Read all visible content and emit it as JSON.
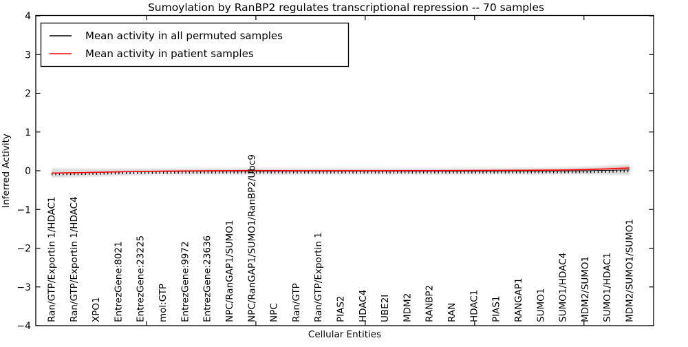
{
  "chart_data": {
    "type": "line",
    "title": "Sumoylation by RanBP2 regulates transcriptional repression -- 70 samples",
    "xlabel": "Cellular Entities",
    "ylabel": "Inferred Activity",
    "ylim": [
      -4,
      4
    ],
    "grid": false,
    "legend_position": "upper left",
    "ytick_values": [
      4,
      3,
      2,
      1,
      0,
      -1,
      -2,
      -3,
      -4
    ],
    "ytick_labels": [
      "4",
      "3",
      "2",
      "1",
      "0",
      "−1",
      "−2",
      "−3",
      "−4"
    ],
    "xticks_unlabeled_index": [
      4.27,
      9.19,
      14.11,
      19.03,
      23.95
    ],
    "categories": [
      "Ran/GTP/Exportin 1/HDAC1",
      "Ran/GTP/Exportin 1/HDAC4",
      "XPO1",
      "EntrezGene:8021",
      "EntrezGene:23225",
      "mol:GTP",
      "EntrezGene:9972",
      "EntrezGene:23636",
      "NPC/RanGAP1/SUMO1",
      "NPC/RanGAP1/SUMO1/RanBP2/Ubc9",
      "NPC",
      "Ran/GTP",
      "Ran/GTP/Exportin 1",
      "PIAS2",
      "HDAC4",
      "UBE2I",
      "MDM2",
      "RANBP2",
      "RAN",
      "HDAC1",
      "PIAS1",
      "RANGAP1",
      "SUMO1",
      "SUMO1/HDAC4",
      "MDM2/SUMO1",
      "SUMO1/HDAC1",
      "MDM2/SUMO1/SUMO1"
    ],
    "series": [
      {
        "name": "Mean activity in all permuted samples",
        "color": "#000000",
        "style": "tick-dashed",
        "values": [
          -0.055,
          -0.05,
          -0.04,
          -0.03,
          -0.022,
          -0.018,
          -0.015,
          -0.013,
          -0.012,
          -0.012,
          -0.012,
          -0.012,
          -0.012,
          -0.012,
          -0.012,
          -0.012,
          -0.012,
          -0.012,
          -0.012,
          -0.012,
          -0.012,
          -0.01,
          -0.008,
          -0.005,
          0.0,
          0.01,
          0.022
        ]
      },
      {
        "name": "Mean activity in patient samples",
        "color": "#ff0000",
        "style": "solid",
        "values": [
          -0.06,
          -0.052,
          -0.04,
          -0.028,
          -0.018,
          -0.01,
          -0.005,
          -0.002,
          0.002,
          0.006,
          0.004,
          0.002,
          0.002,
          0.002,
          0.002,
          0.002,
          0.003,
          0.004,
          0.006,
          0.008,
          0.01,
          0.012,
          0.015,
          0.02,
          0.03,
          0.048,
          0.07
        ]
      }
    ],
    "bands": [
      {
        "name": "permuted samples spread",
        "color": "#d8d8d8",
        "opacity": 0.8,
        "hi": [
          0.045,
          0.042,
          0.04,
          0.04,
          0.04,
          0.042,
          0.045,
          0.048,
          0.05,
          0.052,
          0.05,
          0.048,
          0.046,
          0.045,
          0.045,
          0.045,
          0.045,
          0.046,
          0.048,
          0.05,
          0.052,
          0.055,
          0.06,
          0.07,
          0.085,
          0.115,
          0.15
        ],
        "lo": [
          -0.165,
          -0.15,
          -0.13,
          -0.112,
          -0.098,
          -0.088,
          -0.082,
          -0.078,
          -0.075,
          -0.075,
          -0.072,
          -0.07,
          -0.07,
          -0.07,
          -0.07,
          -0.07,
          -0.07,
          -0.07,
          -0.07,
          -0.07,
          -0.07,
          -0.07,
          -0.072,
          -0.075,
          -0.08,
          -0.09,
          -0.1
        ]
      },
      {
        "name": "patient samples spread",
        "color": "#ffa0a0",
        "opacity": 0.5,
        "hi": [
          -0.045,
          -0.038,
          -0.028,
          -0.016,
          -0.006,
          0.002,
          0.008,
          0.012,
          0.016,
          0.02,
          0.016,
          0.012,
          0.012,
          0.012,
          0.012,
          0.012,
          0.014,
          0.016,
          0.018,
          0.02,
          0.023,
          0.026,
          0.03,
          0.04,
          0.055,
          0.085,
          0.12
        ],
        "lo": [
          -0.075,
          -0.066,
          -0.052,
          -0.04,
          -0.03,
          -0.022,
          -0.018,
          -0.014,
          -0.01,
          -0.006,
          -0.008,
          -0.008,
          -0.008,
          -0.008,
          -0.008,
          -0.008,
          -0.007,
          -0.006,
          -0.005,
          -0.004,
          -0.002,
          -0.001,
          0.0,
          0.002,
          0.006,
          0.012,
          0.022
        ]
      }
    ]
  }
}
